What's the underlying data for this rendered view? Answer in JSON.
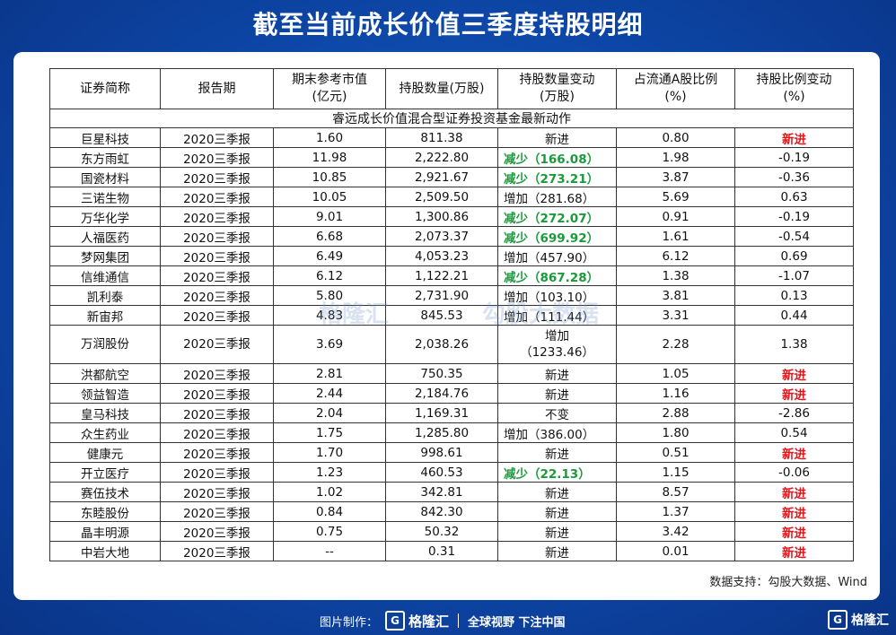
{
  "title": "截至当前成长价值三季度持股明细",
  "table": {
    "caption": "睿远成长价值混合型证券投资基金最新动作",
    "headers": [
      "证券简称",
      "报告期",
      "期末参考市值\n(亿元)",
      "持股数量(万股)",
      "持股数量变动\n(万股)",
      "占流通A股比例\n(%)",
      "持股比例变动\n(%)"
    ],
    "rows": [
      {
        "name": "巨星科技",
        "period": "2020三季报",
        "value": "1.60",
        "shares": "811.38",
        "change": "新进",
        "change_type": "new",
        "ratio": "0.80",
        "ratio_change": "新进",
        "rc_type": "new"
      },
      {
        "name": "东方雨虹",
        "period": "2020三季报",
        "value": "11.98",
        "shares": "2,222.80",
        "change": "减少（166.08）",
        "change_type": "dec",
        "ratio": "1.98",
        "ratio_change": "-0.19",
        "rc_type": "num"
      },
      {
        "name": "国瓷材料",
        "period": "2020三季报",
        "value": "10.85",
        "shares": "2,921.67",
        "change": "减少（273.21）",
        "change_type": "dec",
        "ratio": "3.87",
        "ratio_change": "-0.36",
        "rc_type": "num"
      },
      {
        "name": "三诺生物",
        "period": "2020三季报",
        "value": "10.05",
        "shares": "2,509.50",
        "change": "增加（281.68）",
        "change_type": "inc",
        "ratio": "5.69",
        "ratio_change": "0.63",
        "rc_type": "num"
      },
      {
        "name": "万华化学",
        "period": "2020三季报",
        "value": "9.01",
        "shares": "1,300.86",
        "change": "减少（272.07）",
        "change_type": "dec",
        "ratio": "0.91",
        "ratio_change": "-0.19",
        "rc_type": "num"
      },
      {
        "name": "人福医药",
        "period": "2020三季报",
        "value": "6.68",
        "shares": "2,073.37",
        "change": "减少（699.92）",
        "change_type": "dec",
        "ratio": "1.61",
        "ratio_change": "-0.54",
        "rc_type": "num"
      },
      {
        "name": "梦网集团",
        "period": "2020三季报",
        "value": "6.49",
        "shares": "4,053.23",
        "change": "增加（457.90）",
        "change_type": "inc",
        "ratio": "6.12",
        "ratio_change": "0.69",
        "rc_type": "num"
      },
      {
        "name": "信维通信",
        "period": "2020三季报",
        "value": "6.12",
        "shares": "1,122.21",
        "change": "减少（867.28）",
        "change_type": "dec",
        "ratio": "1.38",
        "ratio_change": "-1.07",
        "rc_type": "num"
      },
      {
        "name": "凯利泰",
        "period": "2020三季报",
        "value": "5.80",
        "shares": "2,731.90",
        "change": "增加（103.10）",
        "change_type": "inc",
        "ratio": "3.81",
        "ratio_change": "0.13",
        "rc_type": "num"
      },
      {
        "name": "新宙邦",
        "period": "2020三季报",
        "value": "4.83",
        "shares": "845.53",
        "change": "增加（111.44）",
        "change_type": "inc",
        "ratio": "3.31",
        "ratio_change": "0.44",
        "rc_type": "num"
      },
      {
        "name": "万润股份",
        "period": "2020三季报",
        "value": "3.69",
        "shares": "2,038.26",
        "change": "增加\n（1233.46）",
        "change_type": "tall",
        "ratio": "2.28",
        "ratio_change": "1.38",
        "rc_type": "num"
      },
      {
        "name": "洪都航空",
        "period": "2020三季报",
        "value": "2.81",
        "shares": "750.35",
        "change": "新进",
        "change_type": "new",
        "ratio": "1.05",
        "ratio_change": "新进",
        "rc_type": "new"
      },
      {
        "name": "领益智造",
        "period": "2020三季报",
        "value": "2.44",
        "shares": "2,184.76",
        "change": "新进",
        "change_type": "new",
        "ratio": "1.16",
        "ratio_change": "新进",
        "rc_type": "new"
      },
      {
        "name": "皇马科技",
        "period": "2020三季报",
        "value": "2.04",
        "shares": "1,169.31",
        "change": "不变",
        "change_type": "new",
        "ratio": "2.88",
        "ratio_change": "-2.86",
        "rc_type": "num"
      },
      {
        "name": "众生药业",
        "period": "2020三季报",
        "value": "1.75",
        "shares": "1,285.80",
        "change": "增加（386.00）",
        "change_type": "inc",
        "ratio": "1.80",
        "ratio_change": "0.54",
        "rc_type": "num"
      },
      {
        "name": "健康元",
        "period": "2020三季报",
        "value": "1.70",
        "shares": "998.61",
        "change": "新进",
        "change_type": "new",
        "ratio": "0.51",
        "ratio_change": "新进",
        "rc_type": "new"
      },
      {
        "name": "开立医疗",
        "period": "2020三季报",
        "value": "1.23",
        "shares": "460.53",
        "change": "减少（22.13）",
        "change_type": "dec",
        "ratio": "1.15",
        "ratio_change": "-0.06",
        "rc_type": "num"
      },
      {
        "name": "赛伍技术",
        "period": "2020三季报",
        "value": "1.02",
        "shares": "342.81",
        "change": "新进",
        "change_type": "new",
        "ratio": "8.57",
        "ratio_change": "新进",
        "rc_type": "new"
      },
      {
        "name": "东睦股份",
        "period": "2020三季报",
        "value": "0.84",
        "shares": "842.30",
        "change": "新进",
        "change_type": "new",
        "ratio": "1.37",
        "ratio_change": "新进",
        "rc_type": "new"
      },
      {
        "name": "晶丰明源",
        "period": "2020三季报",
        "value": "0.75",
        "shares": "50.32",
        "change": "新进",
        "change_type": "new",
        "ratio": "3.42",
        "ratio_change": "新进",
        "rc_type": "new"
      },
      {
        "name": "中岩大地",
        "period": "2020三季报",
        "value": "--",
        "shares": "0.31",
        "change": "新进",
        "change_type": "new",
        "ratio": "0.01",
        "ratio_change": "新进",
        "rc_type": "new"
      }
    ]
  },
  "watermark": {
    "left": "格隆汇",
    "right": "勾股大数据"
  },
  "source": "数据支持：勾股大数据、Wind",
  "footer": {
    "made_by": "图片制作：",
    "logo_mark": "G",
    "logo_text": "格隆汇",
    "slogan": "全球视野 下注中国",
    "right_logo_mark": "G",
    "right_logo_text": "格隆汇"
  },
  "colors": {
    "decrease": "#1a9a3a",
    "new_highlight": "#e0161b",
    "background": "#0d46a6"
  }
}
